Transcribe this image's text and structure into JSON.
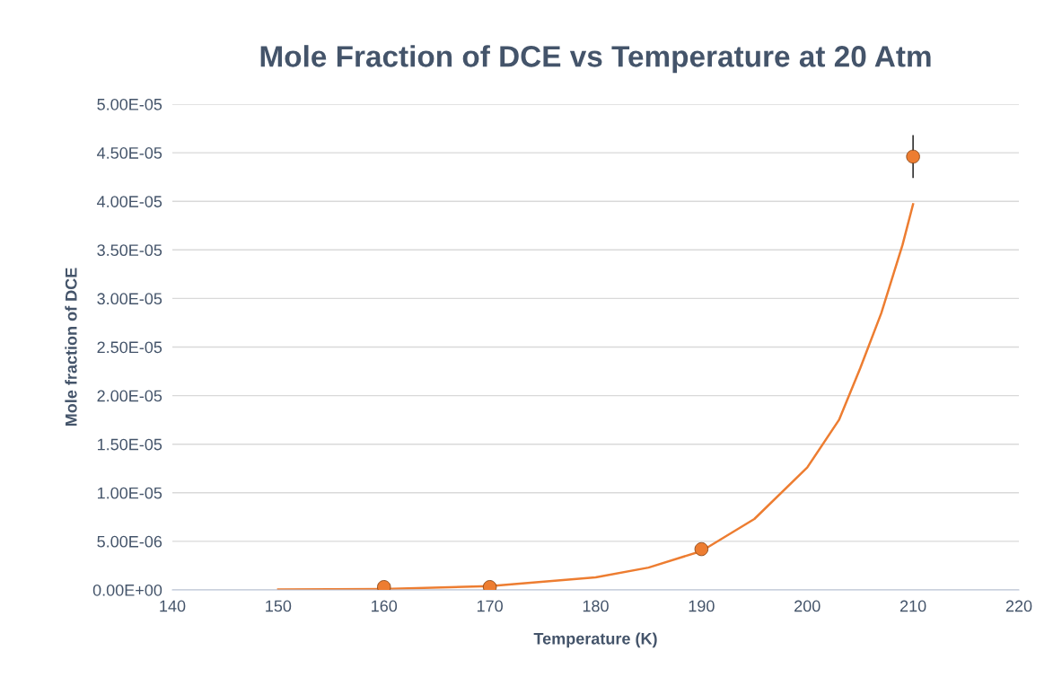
{
  "chart_data": {
    "type": "scatter",
    "title": "Mole Fraction of DCE vs Temperature at 20 Atm",
    "xlabel": "Temperature (K)",
    "ylabel": "Mole fraction of DCE",
    "series": [
      {
        "color": "#ed7d31",
        "x": [
          160,
          170,
          190,
          210
        ],
        "values": [
          3e-07,
          3e-07,
          4.2e-06,
          4.46e-05
        ],
        "errors": [
          null,
          null,
          null,
          2.2e-06
        ]
      },
      {
        "type": "line",
        "color": "#ed7d31",
        "marker": "none",
        "x": [
          150,
          160,
          170,
          180,
          185,
          190,
          195,
          200,
          203,
          205,
          207,
          209,
          210
        ],
        "values": [
          4e-08,
          1e-07,
          4e-07,
          1.3e-06,
          2.3e-06,
          4e-06,
          7.3e-06,
          1.26e-05,
          1.75e-05,
          2.28e-05,
          2.85e-05,
          3.55e-05,
          3.97e-05
        ]
      }
    ],
    "marker": "circle",
    "grid": "y",
    "legend": false,
    "xlim": [
      140,
      220
    ],
    "xticks": [
      140,
      150,
      160,
      170,
      180,
      190,
      200,
      210,
      220
    ],
    "ylim": [
      0,
      5e-05
    ],
    "yticks": [
      {
        "value": 0,
        "label": "0.00E+00"
      },
      {
        "value": 5e-06,
        "label": "5.00E-06"
      },
      {
        "value": 1e-05,
        "label": "1.00E-05"
      },
      {
        "value": 1.5e-05,
        "label": "1.50E-05"
      },
      {
        "value": 2e-05,
        "label": "2.00E-05"
      },
      {
        "value": 2.5e-05,
        "label": "2.50E-05"
      },
      {
        "value": 3e-05,
        "label": "3.00E-05"
      },
      {
        "value": 3.5e-05,
        "label": "3.50E-05"
      },
      {
        "value": 4e-05,
        "label": "4.00E-05"
      },
      {
        "value": 4.5e-05,
        "label": "4.50E-05"
      },
      {
        "value": 5e-05,
        "label": "5.00E-05"
      }
    ]
  }
}
